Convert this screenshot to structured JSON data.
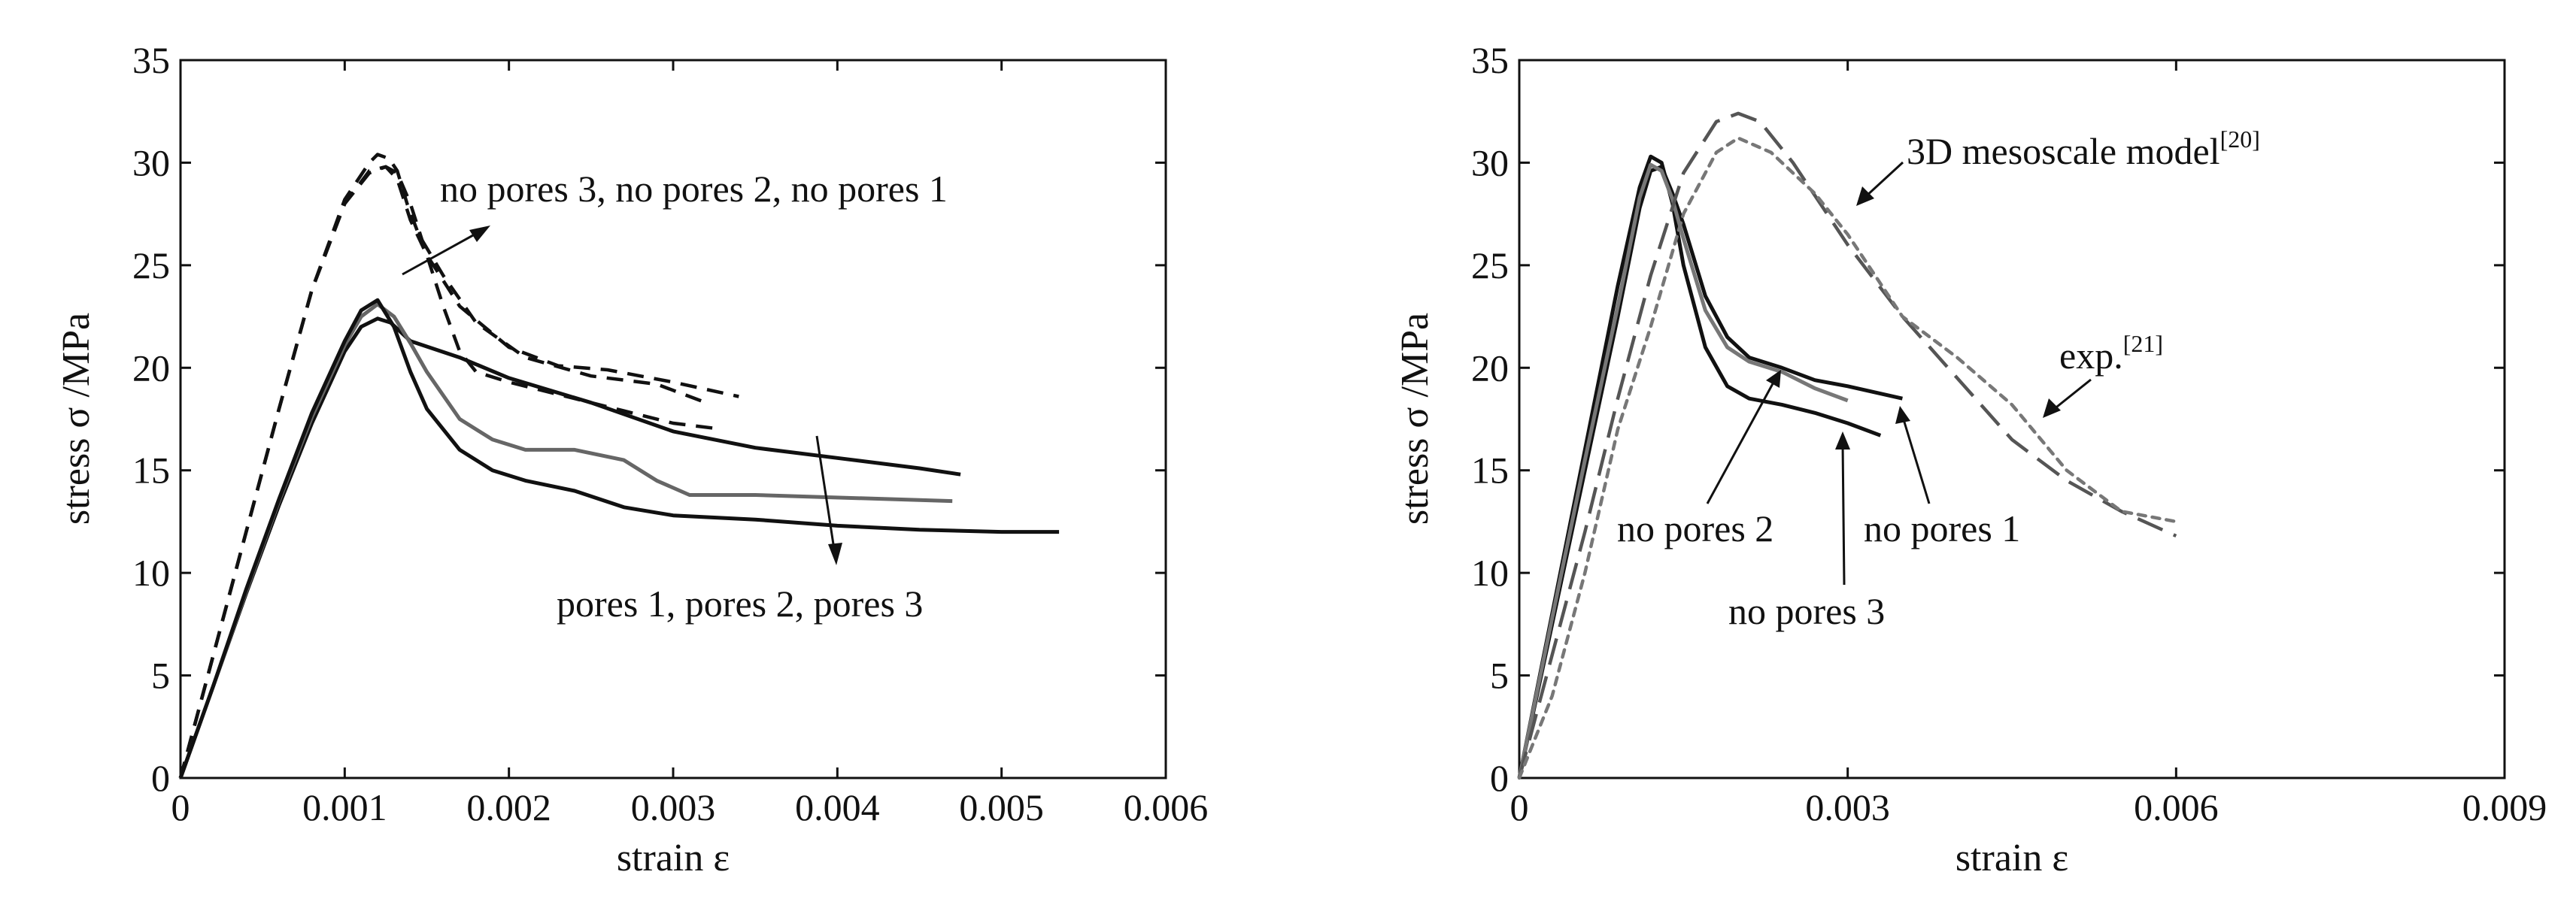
{
  "chart_data": [
    {
      "type": "line",
      "xlabel": "strain ε",
      "ylabel": "stress σ /MPa",
      "xlim": [
        0,
        0.006
      ],
      "ylim": [
        0,
        35
      ],
      "xticks": [
        "0",
        "0.001",
        "0.002",
        "0.003",
        "0.004",
        "0.005",
        "0.006"
      ],
      "yticks": [
        "0",
        "5",
        "10",
        "15",
        "20",
        "25",
        "30",
        "35"
      ],
      "grid": false,
      "annotations": [
        {
          "text": "no pores 3, no pores 2, no pores 1"
        },
        {
          "text": "pores 1, pores 2, pores 3"
        }
      ],
      "series": [
        {
          "style": "dashed",
          "color": "#111111",
          "x": [
            0,
            0.0002,
            0.0004,
            0.0006,
            0.0008,
            0.001,
            0.00115,
            0.0012,
            0.00127,
            0.00132,
            0.00138,
            0.00145,
            0.0016,
            0.0018,
            0.0021,
            0.0025,
            0.0029,
            0.0032
          ],
          "y": [
            0,
            6,
            12,
            18,
            23.8,
            28.2,
            30.0,
            30.4,
            30.2,
            29.6,
            28.0,
            26.5,
            24.5,
            22.2,
            20.5,
            19.6,
            19.2,
            18.3
          ]
        },
        {
          "style": "dashed",
          "color": "#111111",
          "x": [
            0,
            0.0002,
            0.0004,
            0.0006,
            0.0008,
            0.001,
            0.00115,
            0.00125,
            0.00132,
            0.0014,
            0.0015,
            0.0017,
            0.002,
            0.0023,
            0.0026,
            0.003,
            0.0034
          ],
          "y": [
            0,
            6,
            12,
            18,
            23.8,
            28.0,
            29.6,
            29.8,
            29.2,
            27.2,
            25.5,
            23.0,
            21.0,
            20.1,
            19.9,
            19.3,
            18.6
          ]
        },
        {
          "style": "dashed",
          "color": "#111111",
          "x": [
            0,
            0.0002,
            0.0004,
            0.0006,
            0.0008,
            0.001,
            0.00115,
            0.00125,
            0.00132,
            0.0014,
            0.0015,
            0.0016,
            0.0017,
            0.0018,
            0.002,
            0.0024,
            0.0027,
            0.003,
            0.0033
          ],
          "y": [
            0,
            6,
            12,
            18,
            23.8,
            28.0,
            29.5,
            29.8,
            29.5,
            28.0,
            25.5,
            23.0,
            20.8,
            19.8,
            19.3,
            18.5,
            17.9,
            17.3,
            17.0
          ]
        },
        {
          "style": "solid",
          "color": "#111111",
          "x": [
            0,
            0.0002,
            0.0004,
            0.0006,
            0.0008,
            0.001,
            0.0011,
            0.0012,
            0.00128,
            0.0014,
            0.0017,
            0.002,
            0.0025,
            0.003,
            0.0035,
            0.004,
            0.0045,
            0.00475
          ],
          "y": [
            0,
            4.5,
            9.0,
            13.3,
            17.3,
            20.8,
            22.0,
            22.4,
            22.2,
            21.3,
            20.5,
            19.5,
            18.3,
            16.9,
            16.1,
            15.6,
            15.1,
            14.8
          ]
        },
        {
          "style": "solid",
          "color": "#666666",
          "x": [
            0,
            0.0002,
            0.0004,
            0.0006,
            0.0008,
            0.001,
            0.0011,
            0.0012,
            0.0013,
            0.0014,
            0.0015,
            0.0017,
            0.0019,
            0.0021,
            0.0024,
            0.0027,
            0.0029,
            0.0031,
            0.0035,
            0.0039,
            0.0043,
            0.0047
          ],
          "y": [
            0,
            4.5,
            9.1,
            13.5,
            17.6,
            21.1,
            22.5,
            23.1,
            22.5,
            21.2,
            19.8,
            17.5,
            16.5,
            16.0,
            16.0,
            15.5,
            14.5,
            13.8,
            13.8,
            13.7,
            13.6,
            13.5
          ]
        },
        {
          "style": "solid",
          "color": "#111111",
          "x": [
            0,
            0.0002,
            0.0004,
            0.0006,
            0.0008,
            0.001,
            0.0011,
            0.0012,
            0.0013,
            0.0014,
            0.0015,
            0.0017,
            0.0019,
            0.0021,
            0.0024,
            0.0027,
            0.003,
            0.0035,
            0.004,
            0.0045,
            0.005,
            0.00535
          ],
          "y": [
            0,
            4.5,
            9.2,
            13.6,
            17.8,
            21.3,
            22.8,
            23.3,
            22.0,
            19.8,
            18.0,
            16.0,
            15.0,
            14.5,
            14.0,
            13.2,
            12.8,
            12.6,
            12.3,
            12.1,
            12.0,
            12.0
          ]
        }
      ]
    },
    {
      "type": "line",
      "xlabel": "strain ε",
      "ylabel": "stress σ /MPa",
      "xlim": [
        0,
        0.009
      ],
      "ylim": [
        0,
        35
      ],
      "xticks": [
        "0",
        "0.003",
        "0.006",
        "0.009"
      ],
      "yticks": [
        "0",
        "5",
        "10",
        "15",
        "20",
        "25",
        "30",
        "35"
      ],
      "grid": false,
      "annotations": [
        {
          "text": "3D mesoscale model",
          "sup": "[20]"
        },
        {
          "text": "exp.",
          "sup": "[21]"
        },
        {
          "text": "no pores 2"
        },
        {
          "text": "no pores 1"
        },
        {
          "text": "no pores 3"
        }
      ],
      "series": [
        {
          "style": "solid",
          "color": "#111111",
          "x": [
            0,
            0.0003,
            0.0006,
            0.0009,
            0.0011,
            0.0012,
            0.0013,
            0.0014,
            0.0015,
            0.0017,
            0.0019,
            0.0021,
            0.0024,
            0.0027,
            0.003,
            0.0033
          ],
          "y": [
            0,
            8,
            16,
            24,
            28.8,
            30.3,
            30.0,
            28.0,
            25.0,
            21.0,
            19.1,
            18.5,
            18.2,
            17.8,
            17.3,
            16.7
          ]
        },
        {
          "style": "solid",
          "color": "#111111",
          "x": [
            0,
            0.0003,
            0.0006,
            0.0009,
            0.0011,
            0.0012,
            0.0013,
            0.0014,
            0.0015,
            0.0017,
            0.0019,
            0.0021,
            0.0024,
            0.0027,
            0.003,
            0.0035
          ],
          "y": [
            0,
            7.5,
            15,
            22.5,
            27.8,
            29.6,
            29.8,
            28.5,
            27.0,
            23.5,
            21.5,
            20.5,
            20.0,
            19.4,
            19.1,
            18.5
          ]
        },
        {
          "style": "solid",
          "color": "#777777",
          "x": [
            0,
            0.0003,
            0.0006,
            0.0009,
            0.0011,
            0.0012,
            0.0013,
            0.0014,
            0.0015,
            0.0017,
            0.0019,
            0.0021,
            0.0024,
            0.0027,
            0.003
          ],
          "y": [
            0,
            7.8,
            15.5,
            23,
            28.3,
            29.9,
            29.6,
            28.2,
            26.3,
            22.8,
            21.0,
            20.3,
            19.8,
            19.0,
            18.4
          ]
        },
        {
          "style": "longdash",
          "color": "#555555",
          "x": [
            0,
            0.0003,
            0.0006,
            0.0009,
            0.0012,
            0.0015,
            0.0018,
            0.002,
            0.0022,
            0.0025,
            0.003,
            0.0035,
            0.004,
            0.0045,
            0.005,
            0.0055,
            0.006
          ],
          "y": [
            0,
            6,
            12,
            18.5,
            24.5,
            29.5,
            32.0,
            32.4,
            32.0,
            30.0,
            26.0,
            22.5,
            19.5,
            16.5,
            14.5,
            13.0,
            11.8
          ]
        },
        {
          "style": "dotted",
          "color": "#777777",
          "x": [
            0,
            0.0003,
            0.0006,
            0.0009,
            0.0012,
            0.0015,
            0.0018,
            0.002,
            0.0023,
            0.0027,
            0.003,
            0.0035,
            0.004,
            0.0045,
            0.005,
            0.0055,
            0.006
          ],
          "y": [
            0,
            4,
            10,
            17,
            22,
            27.5,
            30.5,
            31.2,
            30.5,
            28.5,
            26.5,
            22.5,
            20.5,
            18.2,
            15.0,
            13.0,
            12.5
          ]
        }
      ]
    }
  ]
}
